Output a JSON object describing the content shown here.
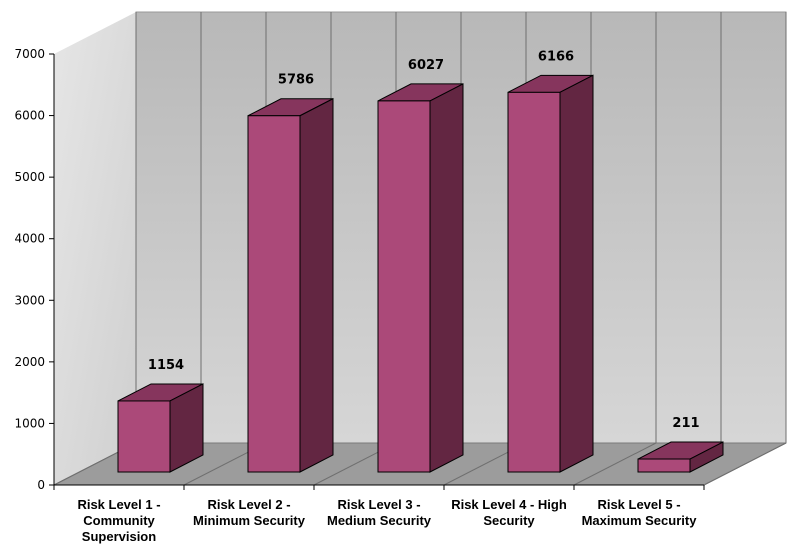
{
  "chart_data": {
    "type": "bar",
    "title": "",
    "xlabel": "",
    "ylabel": "",
    "categories": [
      "Risk Level 1 - Community Supervision",
      "Risk Level 2 - Minimum Security",
      "Risk Level 3 - Medium Security",
      "Risk Level 4 - High Security",
      "Risk Level 5 - Maximum Security"
    ],
    "values": [
      1154,
      5786,
      6027,
      6166,
      211
    ],
    "ylim": [
      0,
      7000
    ],
    "yticks": [
      "0",
      "1000",
      "2000",
      "3000",
      "4000",
      "5000",
      "6000",
      "7000"
    ],
    "data_labels": [
      "1154",
      "5786",
      "6027",
      "6166",
      "211"
    ],
    "grid": "vertical",
    "legend": "none",
    "style": "3d",
    "colors": {
      "bar_front": "#ab4979",
      "bar_top": "#86355d",
      "bar_side": "#632642",
      "wall": "#c8c8c8",
      "floor": "#9c9c9c"
    }
  }
}
